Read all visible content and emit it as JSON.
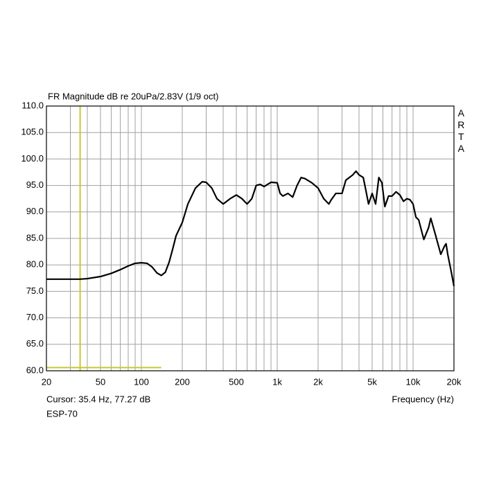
{
  "chart_data": {
    "type": "line",
    "title": "FR Magnitude dB re 20uPa/2.83V (1/9 oct)",
    "watermark": "ARTA",
    "x_label": "Frequency (Hz)",
    "cursor_label": "Cursor: 35.4 Hz, 77.27 dB",
    "device": "ESP-70",
    "x_scale": "log",
    "grid": true,
    "xlim": [
      20,
      20000
    ],
    "ylim": [
      60,
      110
    ],
    "xticks": [
      20,
      50,
      100,
      200,
      500,
      {
        "value": 1000,
        "label": "1k"
      },
      {
        "value": 2000,
        "label": "2k"
      },
      {
        "value": 5000,
        "label": "5k"
      },
      {
        "value": 10000,
        "label": "10k"
      },
      {
        "value": 20000,
        "label": "20k"
      }
    ],
    "x_minor_ticks": [
      30,
      40,
      60,
      70,
      80,
      90,
      300,
      400,
      600,
      700,
      800,
      900,
      3000,
      4000,
      6000,
      7000,
      8000,
      9000
    ],
    "yticks": [
      {
        "value": 60,
        "label": "60.0"
      },
      {
        "value": 65,
        "label": "65.0"
      },
      {
        "value": 70,
        "label": "70.0"
      },
      {
        "value": 75,
        "label": "75.0"
      },
      {
        "value": 80,
        "label": "80.0"
      },
      {
        "value": 85,
        "label": "85.0"
      },
      {
        "value": 90,
        "label": "90.0"
      },
      {
        "value": 95,
        "label": "95.0"
      },
      {
        "value": 100,
        "label": "100.0"
      },
      {
        "value": 105,
        "label": "105.0"
      },
      {
        "value": 110,
        "label": "110.0"
      }
    ],
    "cursor": {
      "x": 35.4,
      "y": 77.27,
      "color": "#c8c832"
    },
    "reference_line": {
      "x": [
        20,
        140
      ],
      "y": 60.6,
      "color": "#c8c832"
    },
    "series": [
      {
        "name": "ESP-70",
        "color": "#000000",
        "x": [
          20,
          30,
          35.4,
          40,
          50,
          60,
          70,
          80,
          90,
          100,
          110,
          120,
          130,
          140,
          150,
          160,
          170,
          180,
          200,
          220,
          250,
          280,
          300,
          330,
          360,
          400,
          450,
          500,
          550,
          600,
          650,
          700,
          750,
          800,
          900,
          1000,
          1050,
          1100,
          1200,
          1300,
          1400,
          1500,
          1600,
          1800,
          2000,
          2200,
          2400,
          2500,
          2700,
          3000,
          3200,
          3600,
          3800,
          4000,
          4300,
          4500,
          4700,
          5000,
          5300,
          5600,
          5900,
          6200,
          6600,
          7000,
          7500,
          8000,
          8500,
          9000,
          9500,
          10000,
          10500,
          11000,
          12000,
          13000,
          13500,
          14500,
          16000,
          17000,
          17500,
          18000,
          19000,
          20000
        ],
        "values": [
          77.3,
          77.3,
          77.3,
          77.4,
          77.8,
          78.4,
          79.1,
          79.8,
          80.3,
          80.4,
          80.3,
          79.6,
          78.5,
          78.0,
          78.6,
          80.5,
          83,
          85.5,
          88,
          91.5,
          94.5,
          95.7,
          95.6,
          94.5,
          92.5,
          91.5,
          92.5,
          93.2,
          92.5,
          91.5,
          92.5,
          95,
          95.2,
          94.8,
          95.6,
          95.5,
          93.5,
          93,
          93.5,
          92.8,
          95,
          96.5,
          96.3,
          95.5,
          94.5,
          92.5,
          91.5,
          92.3,
          93.5,
          93.5,
          96,
          97,
          97.7,
          97,
          96.5,
          94,
          91.5,
          93.5,
          91.5,
          96.5,
          95.5,
          91,
          93,
          93,
          93.8,
          93.2,
          92,
          92.5,
          92.3,
          91.5,
          89,
          88.5,
          84.8,
          87,
          88.8,
          86,
          82,
          83.5,
          84,
          82,
          79,
          76
        ]
      }
    ]
  }
}
